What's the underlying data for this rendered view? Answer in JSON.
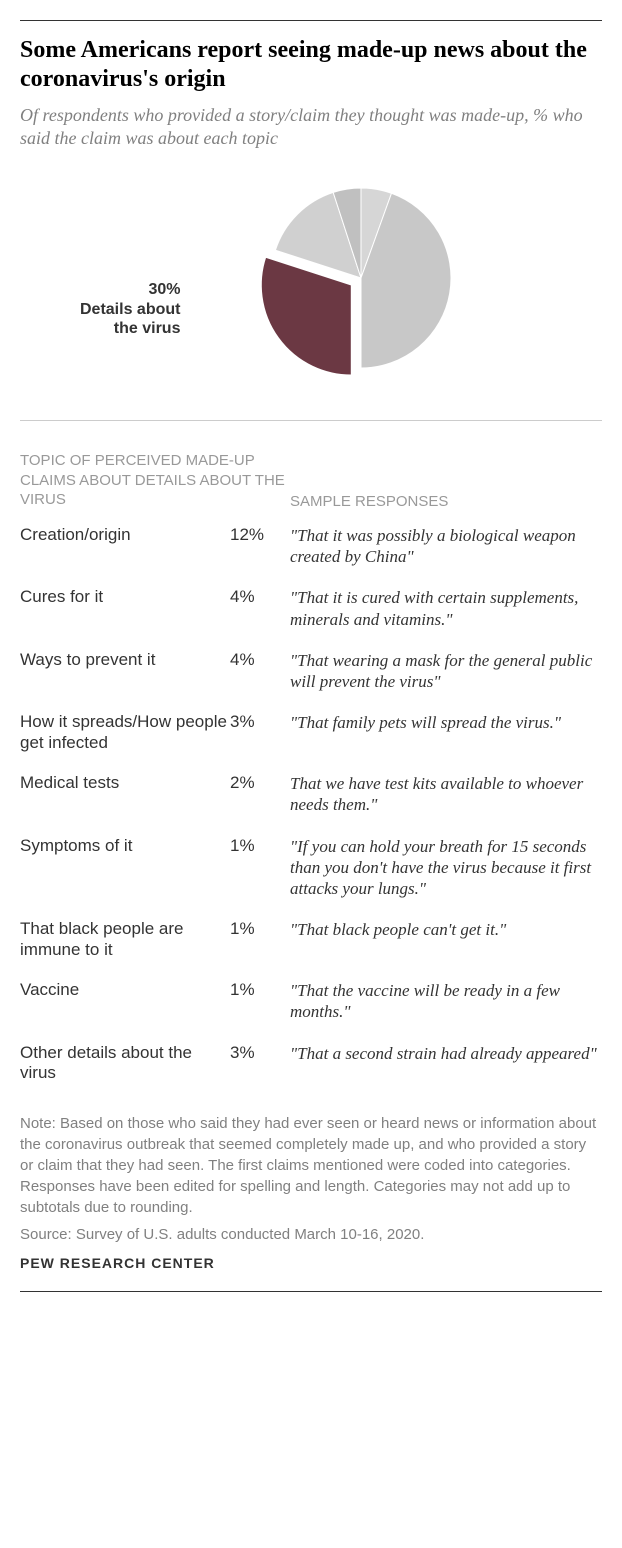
{
  "title": "Some Americans report seeing made-up news about the coronavirus's origin",
  "subtitle": "Of respondents who provided a story/claim they thought was made-up, % who said the claim was about each topic",
  "pie": {
    "percent_label": "30%",
    "text_label_1": "Details about",
    "text_label_2": "the virus",
    "slices": [
      {
        "value": 30,
        "color": "#6b3843",
        "explode": true
      },
      {
        "value": 15,
        "color": "#d0d0d0"
      },
      {
        "value": 5,
        "color": "#c0c0c0"
      },
      {
        "value": 5.5,
        "color": "#d6d6d6"
      },
      {
        "value": 44.5,
        "color": "#c8c8c8"
      }
    ],
    "start_angle": 90
  },
  "headers": {
    "left": "TOPIC OF PERCEIVED MADE-UP CLAIMS ABOUT DETAILS ABOUT THE VIRUS",
    "right": "SAMPLE RESPONSES"
  },
  "rows": [
    {
      "topic": "Creation/origin",
      "percent": "12%",
      "response": "\"That it was possibly a biological weapon created by China\""
    },
    {
      "topic": "Cures for it",
      "percent": "4%",
      "response": "\"That it is cured with certain supplements, minerals and vitamins.\""
    },
    {
      "topic": "Ways to prevent it",
      "percent": "4%",
      "response": "\"That wearing a mask for the general public will prevent the virus\""
    },
    {
      "topic": "How it spreads/How people get infected",
      "percent": "3%",
      "response": "\"That family pets will spread the virus.\""
    },
    {
      "topic": "Medical tests",
      "percent": "2%",
      "response": "That we have test kits available to whoever needs them.\""
    },
    {
      "topic": "Symptoms of it",
      "percent": "1%",
      "response": "\"If you can hold your breath for 15 seconds than you don't have the virus because it first attacks your lungs.\""
    },
    {
      "topic": "That black people are immune to it",
      "percent": "1%",
      "response": "\"That black people can't get it.\""
    },
    {
      "topic": "Vaccine",
      "percent": "1%",
      "response": "\"That the vaccine will be ready in a few months.\""
    },
    {
      "topic": "Other details about the virus",
      "percent": "3%",
      "response": "\"That a second strain had already appeared\""
    }
  ],
  "note": "Note: Based on those who said they had ever seen or heard news or information about the coronavirus outbreak that seemed completely made up, and who provided a story or claim that they had seen. The first claims mentioned were coded into categories. Responses have been edited for spelling and length. Categories may not add up to subtotals due to rounding.",
  "source": "Source: Survey of U.S. adults conducted March 10-16, 2020.",
  "footer": "PEW RESEARCH CENTER"
}
